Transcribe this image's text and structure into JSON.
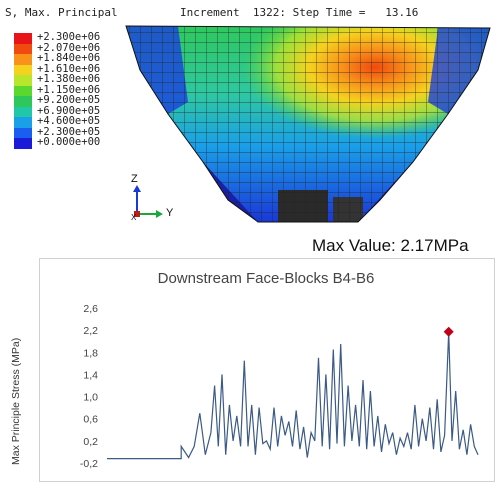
{
  "legend": {
    "title": "S, Max. Principal",
    "entries": [
      {
        "label": "+2.300e+06",
        "color": "#e8141a"
      },
      {
        "label": "+2.070e+06",
        "color": "#f04a0e"
      },
      {
        "label": "+1.840e+06",
        "color": "#f8921a"
      },
      {
        "label": "+1.610e+06",
        "color": "#f5d21e"
      },
      {
        "label": "+1.380e+06",
        "color": "#b8e62a"
      },
      {
        "label": "+1.150e+06",
        "color": "#5ad830"
      },
      {
        "label": "+9.200e+05",
        "color": "#2ec85a"
      },
      {
        "label": "+6.900e+05",
        "color": "#20c8a8"
      },
      {
        "label": "+4.600e+05",
        "color": "#1aa0e8"
      },
      {
        "label": "+2.300e+05",
        "color": "#1a5ef0"
      },
      {
        "label": "+0.000e+00",
        "color": "#1a1ad8"
      }
    ]
  },
  "increment_text": "Increment  1322: Step Time =   13.16",
  "axis_triad": {
    "z": "Z",
    "y": "Y",
    "x": "X"
  },
  "max_value_text": "Max Value: 2.17MPa",
  "chart_data": {
    "type": "line",
    "title": "Downstream Face-Blocks B4-B6",
    "xlabel": "",
    "ylabel": "Max Principle Stress (MPa)",
    "ylim": [
      -0.2,
      2.6
    ],
    "yticks": [
      "2,6",
      "2,2",
      "1,8",
      "1,4",
      "1,0",
      "0,6",
      "0,2",
      "-0,2"
    ],
    "grid": false,
    "series_color": "#3b5a86",
    "marker": {
      "x": 0.921,
      "y": 2.17,
      "color": "#c0001a"
    },
    "x": [
      0.0,
      0.2,
      0.2,
      0.22,
      0.235,
      0.25,
      0.265,
      0.28,
      0.29,
      0.3,
      0.31,
      0.32,
      0.33,
      0.34,
      0.35,
      0.36,
      0.37,
      0.38,
      0.39,
      0.4,
      0.41,
      0.42,
      0.43,
      0.44,
      0.45,
      0.46,
      0.47,
      0.48,
      0.49,
      0.5,
      0.51,
      0.52,
      0.53,
      0.54,
      0.55,
      0.56,
      0.57,
      0.58,
      0.59,
      0.6,
      0.61,
      0.62,
      0.63,
      0.64,
      0.65,
      0.66,
      0.67,
      0.68,
      0.69,
      0.7,
      0.71,
      0.72,
      0.73,
      0.74,
      0.75,
      0.76,
      0.77,
      0.78,
      0.79,
      0.8,
      0.81,
      0.82,
      0.83,
      0.84,
      0.85,
      0.86,
      0.87,
      0.88,
      0.89,
      0.9,
      0.91,
      0.921,
      0.93,
      0.94,
      0.95,
      0.96,
      0.97,
      0.98,
      0.99,
      1.0
    ],
    "y": [
      -0.12,
      -0.12,
      0.1,
      -0.1,
      0.1,
      0.7,
      -0.05,
      0.35,
      1.2,
      0.1,
      1.4,
      -0.05,
      0.85,
      0.2,
      0.65,
      0.1,
      1.65,
      0.1,
      0.85,
      -0.05,
      0.8,
      0.15,
      0.2,
      0.05,
      0.8,
      0.1,
      0.65,
      0.3,
      0.55,
      0.1,
      0.75,
      0.05,
      0.45,
      -0.1,
      0.35,
      0.2,
      1.7,
      0.1,
      1.4,
      0.05,
      1.85,
      0.15,
      1.95,
      0.1,
      1.2,
      0.2,
      0.85,
      0.1,
      1.3,
      0.05,
      1.1,
      0.1,
      0.65,
      0.0,
      0.5,
      0.15,
      0.35,
      -0.05,
      0.25,
      0.1,
      0.35,
      0.05,
      0.85,
      0.1,
      0.6,
      0.2,
      0.8,
      0.05,
      0.95,
      0.0,
      0.3,
      2.17,
      0.2,
      1.1,
      0.05,
      0.4,
      -0.05,
      0.5,
      0.1,
      -0.05
    ]
  }
}
